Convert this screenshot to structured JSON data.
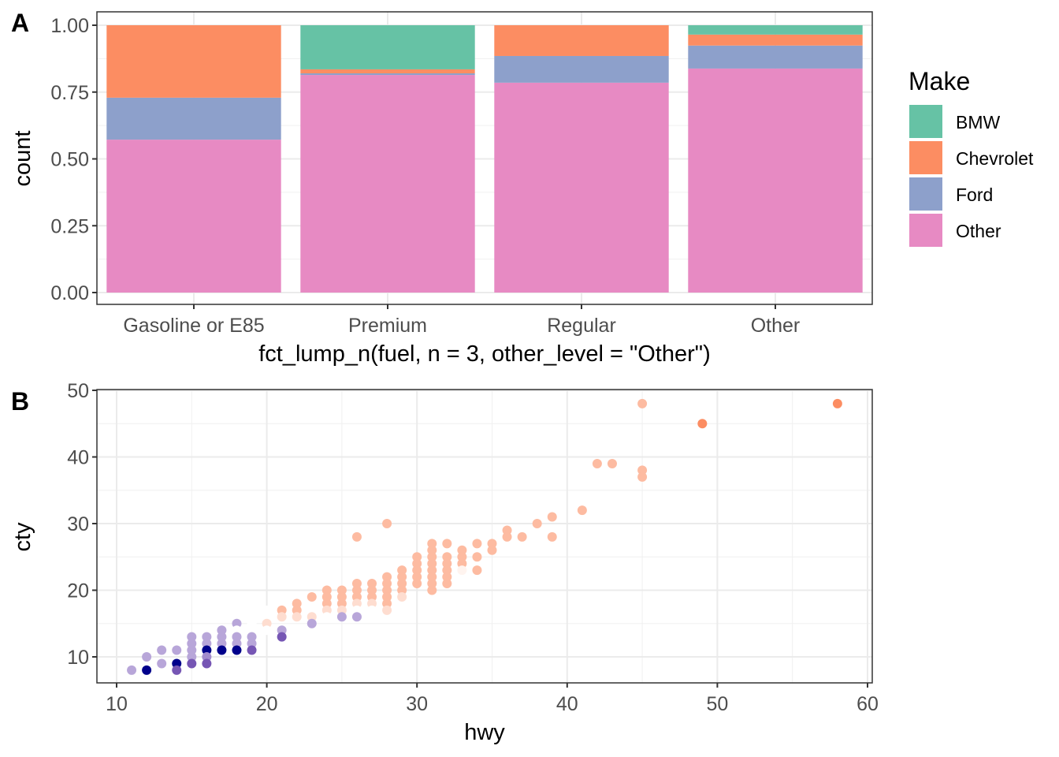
{
  "chart_data": [
    {
      "type": "bar",
      "panel_label": "A",
      "stacked": "fill",
      "xlabel": "fct_lump_n(fuel, n = 3, other_level = \"Other\")",
      "ylabel": "count",
      "categories": [
        "Gasoline or E85",
        "Premium",
        "Regular",
        "Other"
      ],
      "yticks": [
        "0.00",
        "0.25",
        "0.50",
        "0.75",
        "1.00"
      ],
      "ylim": [
        0,
        1
      ],
      "legend": {
        "title": "Make",
        "position": "right"
      },
      "series": [
        {
          "name": "BMW",
          "color": "#66C2A5",
          "values": [
            0.0,
            0.165,
            0.0,
            0.035
          ]
        },
        {
          "name": "Chevrolet",
          "color": "#FC8D62",
          "values": [
            0.271,
            0.015,
            0.115,
            0.041
          ]
        },
        {
          "name": "Ford",
          "color": "#8DA0CB",
          "values": [
            0.157,
            0.006,
            0.1,
            0.086
          ]
        },
        {
          "name": "Other",
          "color": "#E78AC3",
          "values": [
            0.572,
            0.814,
            0.785,
            0.838
          ]
        }
      ]
    },
    {
      "type": "scatter",
      "panel_label": "B",
      "xlabel": "hwy",
      "ylabel": "cty",
      "xlim": [
        10,
        60
      ],
      "ylim": [
        8,
        50
      ],
      "xticks": [
        10,
        20,
        30,
        40,
        50,
        60
      ],
      "yticks": [
        10,
        20,
        30,
        40,
        50
      ],
      "color_scale": {
        "low": "#00008B",
        "mid_low": "#7656B4",
        "light_low": "#B8A6D9",
        "mid": "#FFFFFF",
        "light_high": "#FDBBA1",
        "high": "#FC8D62"
      },
      "points": [
        [
          11,
          8,
          -0.4
        ],
        [
          12,
          10,
          -0.4
        ],
        [
          12,
          8,
          -1
        ],
        [
          13,
          11,
          -0.4
        ],
        [
          13,
          9,
          -0.4
        ],
        [
          14,
          11,
          -0.4
        ],
        [
          14,
          9,
          -1
        ],
        [
          14,
          8,
          -0.7
        ],
        [
          15,
          13,
          -0.4
        ],
        [
          15,
          12,
          -0.4
        ],
        [
          15,
          11,
          -0.4
        ],
        [
          15,
          10,
          -0.4
        ],
        [
          15,
          9,
          -0.7
        ],
        [
          16,
          13,
          -0.4
        ],
        [
          16,
          12,
          -0.4
        ],
        [
          16,
          11,
          -1
        ],
        [
          16,
          10,
          -0.5
        ],
        [
          16,
          9,
          -0.7
        ],
        [
          17,
          14,
          -0.4
        ],
        [
          17,
          13,
          -0.4
        ],
        [
          17,
          12,
          -0.4
        ],
        [
          17,
          11,
          -1
        ],
        [
          18,
          15,
          -0.4
        ],
        [
          18,
          14,
          0
        ],
        [
          18,
          13,
          -0.4
        ],
        [
          18,
          12,
          -0.4
        ],
        [
          18,
          11,
          -1
        ],
        [
          19,
          16,
          0
        ],
        [
          19,
          15,
          0
        ],
        [
          19,
          14,
          0
        ],
        [
          19,
          13,
          -0.4
        ],
        [
          19,
          12,
          -0.4
        ],
        [
          19,
          11,
          -0.7
        ],
        [
          20,
          17,
          0
        ],
        [
          20,
          16,
          0
        ],
        [
          20,
          15,
          0.3
        ],
        [
          20,
          14,
          0
        ],
        [
          21,
          17,
          0.6
        ],
        [
          21,
          16,
          0.3
        ],
        [
          21,
          14,
          -0.4
        ],
        [
          21,
          13,
          -0.7
        ],
        [
          22,
          18,
          0.6
        ],
        [
          22,
          17,
          0.6
        ],
        [
          22,
          16,
          0.3
        ],
        [
          22,
          14,
          0
        ],
        [
          23,
          19,
          0.6
        ],
        [
          23,
          17,
          0
        ],
        [
          23,
          16,
          0.3
        ],
        [
          23,
          15,
          -0.4
        ],
        [
          24,
          20,
          0.6
        ],
        [
          24,
          19,
          0.6
        ],
        [
          24,
          18,
          0.6
        ],
        [
          24,
          17,
          0.3
        ],
        [
          24,
          16,
          0
        ],
        [
          25,
          20,
          0.6
        ],
        [
          25,
          19,
          0.6
        ],
        [
          25,
          18,
          0.6
        ],
        [
          25,
          17,
          0.3
        ],
        [
          25,
          16,
          -0.4
        ],
        [
          26,
          28,
          0.6
        ],
        [
          26,
          21,
          0.6
        ],
        [
          26,
          20,
          0.6
        ],
        [
          26,
          19,
          0.6
        ],
        [
          26,
          18,
          0.3
        ],
        [
          26,
          17,
          0
        ],
        [
          26,
          16,
          -0.4
        ],
        [
          27,
          21,
          0.6
        ],
        [
          27,
          20,
          0.6
        ],
        [
          27,
          19,
          0.6
        ],
        [
          27,
          18,
          0.3
        ],
        [
          27,
          17,
          0
        ],
        [
          28,
          30,
          0.6
        ],
        [
          28,
          22,
          0.6
        ],
        [
          28,
          21,
          0.6
        ],
        [
          28,
          20,
          0.6
        ],
        [
          28,
          19,
          0.6
        ],
        [
          28,
          18,
          0.6
        ],
        [
          28,
          17,
          0.3
        ],
        [
          29,
          23,
          0.6
        ],
        [
          29,
          22,
          0.6
        ],
        [
          29,
          21,
          0.6
        ],
        [
          29,
          20,
          0.6
        ],
        [
          29,
          19,
          0.3
        ],
        [
          30,
          25,
          0.6
        ],
        [
          30,
          24,
          0.6
        ],
        [
          30,
          23,
          0.6
        ],
        [
          30,
          22,
          0.6
        ],
        [
          30,
          21,
          0.6
        ],
        [
          31,
          27,
          0.6
        ],
        [
          31,
          26,
          0.6
        ],
        [
          31,
          25,
          0.6
        ],
        [
          31,
          24,
          0.6
        ],
        [
          31,
          23,
          0.6
        ],
        [
          31,
          22,
          0.6
        ],
        [
          31,
          21,
          0.6
        ],
        [
          31,
          20,
          0.6
        ],
        [
          32,
          27,
          0.6
        ],
        [
          32,
          25,
          0.6
        ],
        [
          32,
          24,
          0.6
        ],
        [
          32,
          23,
          0.6
        ],
        [
          32,
          22,
          0.6
        ],
        [
          32,
          21,
          0.6
        ],
        [
          33,
          26,
          0.6
        ],
        [
          33,
          25,
          0.6
        ],
        [
          33,
          24,
          0.6
        ],
        [
          33,
          23,
          0.1
        ],
        [
          34,
          27,
          0.6
        ],
        [
          34,
          25,
          0.6
        ],
        [
          34,
          23,
          0.6
        ],
        [
          35,
          27,
          0.6
        ],
        [
          35,
          26,
          0.6
        ],
        [
          36,
          29,
          0.6
        ],
        [
          36,
          28,
          0.6
        ],
        [
          37,
          28,
          0.6
        ],
        [
          38,
          30,
          0.6
        ],
        [
          39,
          31,
          0.6
        ],
        [
          39,
          28,
          0.6
        ],
        [
          41,
          32,
          0.6
        ],
        [
          42,
          39,
          0.6
        ],
        [
          43,
          39,
          0.6
        ],
        [
          45,
          48,
          0.6
        ],
        [
          45,
          38,
          0.6
        ],
        [
          45,
          37,
          0.6
        ],
        [
          49,
          45,
          0.9
        ],
        [
          58,
          48,
          0.9
        ]
      ]
    }
  ]
}
